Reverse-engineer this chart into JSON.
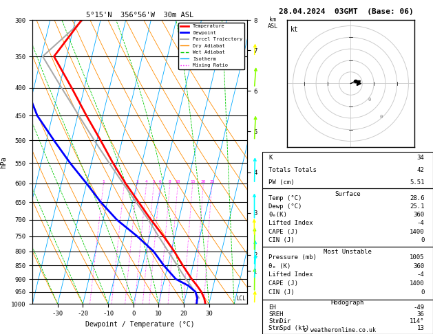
{
  "title_left": "5°15'N  356°56'W  30m ASL",
  "title_right": "28.04.2024  03GMT  (Base: 06)",
  "xlabel": "Dewpoint / Temperature (°C)",
  "pressure_ticks": [
    300,
    350,
    400,
    450,
    500,
    550,
    600,
    650,
    700,
    750,
    800,
    850,
    900,
    950,
    1000
  ],
  "temperature_profile": {
    "pressure": [
      1000,
      975,
      950,
      925,
      900,
      850,
      800,
      750,
      700,
      650,
      600,
      550,
      500,
      450,
      400,
      350,
      300
    ],
    "temp": [
      28.6,
      27.5,
      25.8,
      23.5,
      20.8,
      16.0,
      11.2,
      5.5,
      -1.0,
      -7.5,
      -14.5,
      -21.5,
      -28.5,
      -36.5,
      -45.0,
      -55.0,
      -47.5
    ]
  },
  "dewpoint_profile": {
    "pressure": [
      1000,
      975,
      950,
      925,
      900,
      850,
      800,
      750,
      700,
      650,
      600,
      550,
      500,
      450,
      400,
      350,
      300
    ],
    "temp": [
      25.1,
      24.8,
      23.5,
      20.0,
      14.5,
      8.5,
      3.0,
      -5.0,
      -14.5,
      -22.5,
      -30.0,
      -38.5,
      -47.0,
      -56.0,
      -63.0,
      -69.0,
      -74.0
    ]
  },
  "parcel_profile": {
    "pressure": [
      975,
      950,
      925,
      900,
      850,
      800,
      750,
      700,
      650,
      600,
      550,
      500,
      450,
      400,
      350,
      300
    ],
    "temp": [
      25.5,
      23.2,
      21.0,
      18.5,
      13.8,
      8.8,
      3.5,
      -2.0,
      -8.5,
      -15.5,
      -23.0,
      -31.0,
      -39.5,
      -49.0,
      -59.5,
      -47.0
    ]
  },
  "lcl_pressure": 978,
  "colors": {
    "temperature": "#ff0000",
    "dewpoint": "#0000ff",
    "parcel": "#aaaaaa",
    "dry_adiabat": "#ff8c00",
    "wet_adiabat": "#00cc00",
    "isotherm": "#00aaff",
    "mixing_ratio": "#ff00ff"
  },
  "wind_profile": {
    "pressure": [
      1000,
      950,
      900,
      850,
      800,
      750,
      700,
      600,
      500,
      400,
      350,
      300
    ],
    "color": [
      "#ffff00",
      "#88ff00",
      "#00ffff",
      "#00ffff",
      "#88ff00",
      "#ffff00",
      "#00ffff",
      "#00ffff",
      "#88ff00",
      "#88ff00",
      "#ffff00",
      "#ffff00"
    ],
    "speed_kt": [
      5,
      8,
      10,
      10,
      8,
      6,
      10,
      12,
      10,
      8,
      5,
      4
    ],
    "direction": [
      200,
      185,
      200,
      195,
      185,
      175,
      180,
      190,
      200,
      210,
      205,
      200
    ]
  },
  "info": {
    "K": 34,
    "Totals_Totals": 42,
    "PW_cm": "5.51",
    "Surface_Temp": "28.6",
    "Surface_Dewp": "25.1",
    "Surface_ThetaE": "360",
    "Surface_LI": "-4",
    "Surface_CAPE": "1400",
    "Surface_CIN": "0",
    "MU_Pressure": "1005",
    "MU_ThetaE": "360",
    "MU_LI": "-4",
    "MU_CAPE": "1400",
    "MU_CIN": "0",
    "EH": "-49",
    "SREH": "36",
    "StmDir": "114°",
    "StmSpd": "13"
  }
}
